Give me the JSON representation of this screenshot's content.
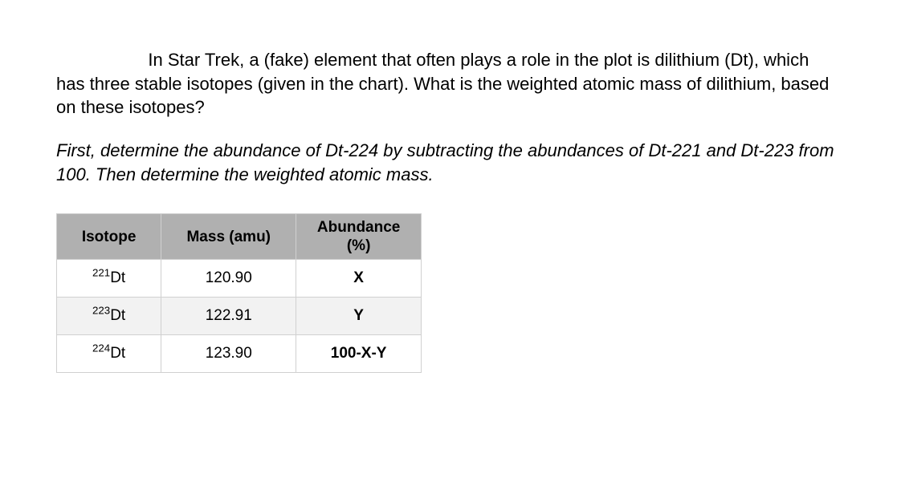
{
  "text": {
    "question": "In Star Trek, a (fake) element that often plays a role in the plot is dilithium (Dt), which has three stable isotopes (given in the chart). What is the weighted atomic mass of dilithium, based on these isotopes?",
    "instruction": "First, determine the abundance of Dt-224 by subtracting the abundances of Dt-221 and Dt-223 from 100. Then determine the weighted atomic mass."
  },
  "table": {
    "headers": {
      "isotope": "Isotope",
      "mass": "Mass (amu)",
      "abundance_line1": "Abundance",
      "abundance_line2": "(%)"
    },
    "rows": [
      {
        "sup": "221",
        "sym": "Dt",
        "mass": "120.90",
        "abundance": "X",
        "bold": true
      },
      {
        "sup": "223",
        "sym": "Dt",
        "mass": "122.91",
        "abundance": "Y",
        "bold": true
      },
      {
        "sup": "224",
        "sym": "Dt",
        "mass": "123.90",
        "abundance": "100-X-Y",
        "bold": true
      }
    ],
    "style": {
      "header_bg": "#b0b0b0",
      "alt_row_bg": "#f2f2f2",
      "border_color": "#d0d0d0",
      "header_fontsize": 19,
      "cell_fontsize": 19
    }
  }
}
